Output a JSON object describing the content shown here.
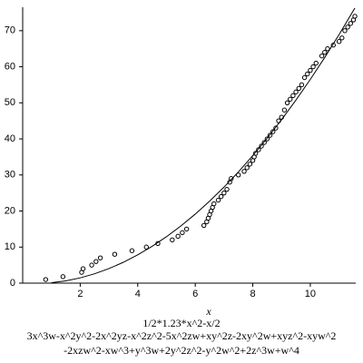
{
  "chart_data": {
    "type": "scatter",
    "xlabel": "x",
    "captions": [
      "1/2*1.23*x^2-x/2",
      "3x^3w-x^2y^2-2x^2yz-x^2z^2-5x^2zw+xy^2z-2xy^2w+xyz^2-xyw^2",
      "-2xzw^2-xw^3+y^3w+2y^2z^2-y^2w^2+2z^3w+w^4"
    ],
    "xlim": [
      0,
      11.58
    ],
    "ylim": [
      0,
      76.5
    ],
    "xticks": [
      2,
      4,
      6,
      8,
      10
    ],
    "yticks": [
      0,
      10,
      20,
      30,
      40,
      50,
      60,
      70
    ],
    "series": [
      {
        "type": "scatter",
        "color": "#000000",
        "x": [
          0.8,
          1.4,
          2.05,
          2.1,
          2.4,
          2.55,
          2.7,
          3.2,
          3.8,
          4.3,
          4.7,
          5.2,
          5.4,
          5.55,
          5.7,
          6.3,
          6.4,
          6.45,
          6.5,
          6.55,
          6.6,
          6.65,
          6.8,
          6.9,
          7.0,
          7.1,
          7.2,
          7.25,
          7.5,
          7.7,
          7.8,
          7.9,
          8.0,
          8.05,
          8.1,
          8.2,
          8.3,
          8.4,
          8.5,
          8.6,
          8.7,
          8.8,
          8.9,
          9.0,
          9.1,
          9.2,
          9.3,
          9.4,
          9.5,
          9.6,
          9.7,
          9.8,
          9.9,
          10.0,
          10.1,
          10.2,
          10.4,
          10.5,
          10.6,
          10.8,
          11.0,
          11.1,
          11.2,
          11.3,
          11.4,
          11.5,
          11.55
        ],
        "values": [
          1,
          1.8,
          3,
          4,
          5,
          6,
          7,
          8,
          9,
          10,
          11,
          12,
          13,
          14,
          15,
          16,
          17,
          18,
          19,
          20,
          21,
          22,
          23,
          24,
          25,
          26,
          28,
          29,
          30,
          31,
          32,
          33,
          34,
          35,
          36,
          37,
          38,
          39,
          40,
          41,
          42,
          43,
          45,
          46,
          48,
          50,
          51,
          52,
          53,
          54,
          55,
          57,
          58,
          59,
          60,
          61,
          63,
          64,
          65,
          66,
          67,
          68,
          70,
          71,
          72,
          73,
          74
        ]
      },
      {
        "type": "line",
        "color": "#000000",
        "x": [
          1,
          1.5,
          2,
          2.5,
          3,
          3.5,
          4,
          4.5,
          5,
          5.5,
          6,
          6.5,
          7,
          7.5,
          8,
          8.5,
          9,
          9.5,
          10,
          10.5,
          11,
          11.55
        ],
        "values": [
          0.115,
          0.634,
          1.46,
          2.594,
          4.035,
          5.784,
          7.84,
          10.204,
          12.875,
          15.854,
          19.14,
          22.734,
          26.635,
          30.844,
          35.36,
          40.184,
          45.315,
          50.754,
          56.5,
          62.554,
          68.915,
          76.27
        ]
      }
    ]
  }
}
